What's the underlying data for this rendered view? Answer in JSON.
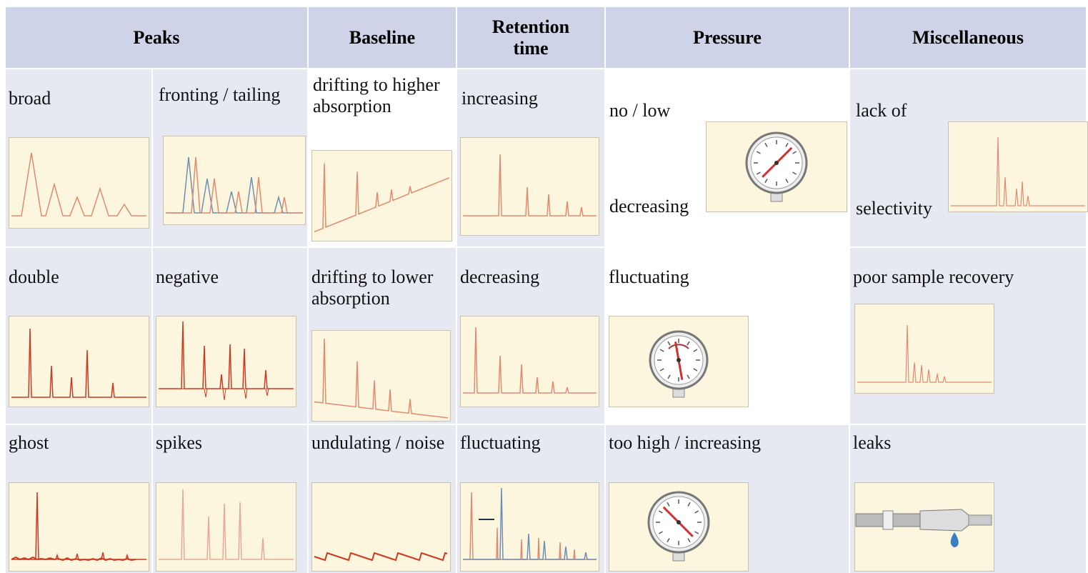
{
  "table": {
    "headers": [
      "Peaks",
      "Baseline",
      "Retention time",
      "Pressure",
      "Miscellaneous"
    ],
    "rows": [
      [
        [
          "broad"
        ],
        [
          "fronting / tailing"
        ],
        [
          "drifting to higher absorption"
        ],
        [
          "increasing"
        ],
        [
          "no / low",
          "decreasing"
        ],
        [
          "lack of",
          "selectivity"
        ]
      ],
      [
        [
          "double"
        ],
        [
          "negative"
        ],
        [
          "drifting to lower absorption"
        ],
        [
          "decreasing"
        ],
        [
          "fluctuating"
        ],
        [
          "poor sample recovery"
        ]
      ],
      [
        [
          "ghost"
        ],
        [
          "spikes"
        ],
        [
          "undulating / noise"
        ],
        [
          "fluctuating"
        ],
        [
          "too high / increasing"
        ],
        [
          "leaks"
        ]
      ]
    ]
  }
}
